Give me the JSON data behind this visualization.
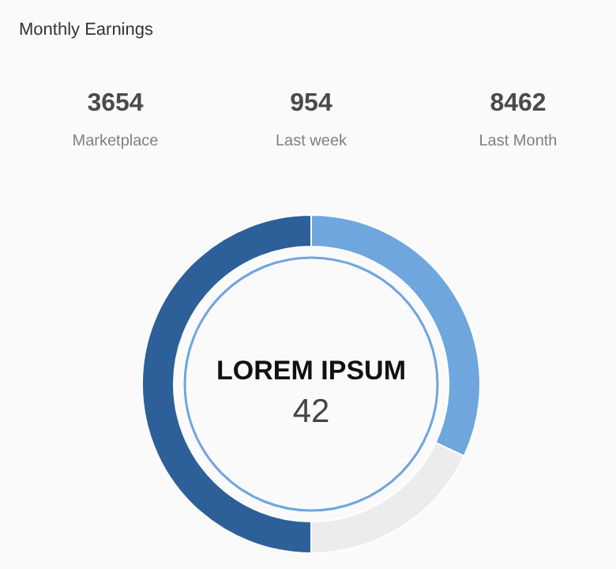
{
  "chart_data": [
    {
      "type": "other",
      "title": "Monthly Earnings",
      "annotations": [
        "3654",
        "Marketplace",
        "954",
        "Last week",
        "8462",
        "Last Month"
      ]
    },
    {
      "type": "donut",
      "categories": [
        null,
        null,
        null
      ],
      "values": [
        32,
        18,
        50
      ],
      "colors": [
        "#6fa6de",
        "#ececec",
        "#2d6099"
      ],
      "annotations": [
        "LOREM IPSUM",
        "42"
      ]
    }
  ]
}
